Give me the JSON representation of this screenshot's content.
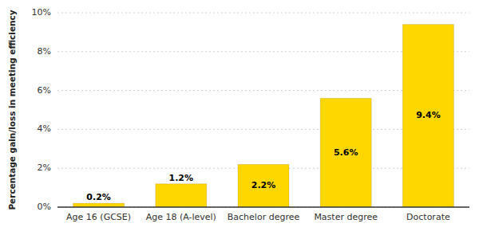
{
  "chart_data": {
    "type": "bar",
    "ylabel": "Percentage gain/loss in meeting efficiency",
    "categories": [
      "Age 16 (GCSE)",
      "Age 18 (A-level)",
      "Bachelor degree",
      "Master degree",
      "Doctorate"
    ],
    "values": [
      0.2,
      1.2,
      2.2,
      5.6,
      9.4
    ],
    "value_labels": [
      "0.2%",
      "1.2%",
      "2.2%",
      "5.6%",
      "9.4%"
    ],
    "color": "#FFD700",
    "ylim": [
      0,
      10
    ],
    "yticks": [
      {
        "value": 0,
        "label": "0%"
      },
      {
        "value": 2,
        "label": "2%"
      },
      {
        "value": 4,
        "label": "4%"
      },
      {
        "value": 6,
        "label": "6%"
      },
      {
        "value": 8,
        "label": "8%"
      },
      {
        "value": 10,
        "label": "10%"
      }
    ],
    "grid": true,
    "data_labels": true
  }
}
